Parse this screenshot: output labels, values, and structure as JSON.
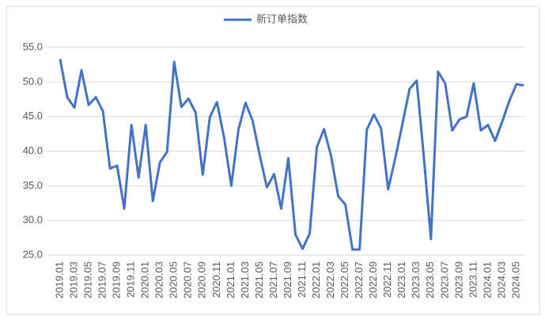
{
  "chart_data": {
    "type": "line",
    "categories": [
      "2019.01",
      null,
      "2019.03",
      null,
      "2019.05",
      null,
      "2019.07",
      null,
      "2019.09",
      null,
      "2019.11",
      null,
      "2020.01",
      null,
      "2020.03",
      null,
      "2020.05",
      null,
      "2020.07",
      null,
      "2020.09",
      null,
      "2020.11",
      null,
      "2021.01",
      null,
      "2021.03",
      null,
      "2021.05",
      null,
      "2021.07",
      null,
      "2021.09",
      null,
      "2021.11",
      null,
      "2022.01",
      null,
      "2022.03",
      null,
      "2022.05",
      null,
      "2022.07",
      null,
      "2022.09",
      null,
      "2022.11",
      null,
      "2023.01",
      null,
      "2023.03",
      null,
      "2023.05",
      null,
      "2023.07",
      null,
      "2023.09",
      null,
      "2023.11",
      null,
      "2024.01",
      null,
      "2024.03",
      null,
      "2024.05",
      null
    ],
    "series": [
      {
        "name": "新订单指数",
        "color": "#4472c4",
        "values": [
          53.3,
          47.8,
          46.3,
          51.7,
          46.7,
          47.8,
          45.8,
          37.5,
          37.9,
          31.7,
          43.8,
          36.2,
          43.8,
          32.8,
          38.4,
          39.9,
          52.9,
          46.4,
          47.6,
          45.6,
          36.6,
          44.9,
          47.1,
          41.9,
          35.0,
          43.1,
          47.0,
          44.4,
          39.4,
          34.8,
          36.7,
          31.7,
          39.0,
          28.0,
          25.9,
          28.1,
          40.6,
          43.2,
          39.3,
          33.5,
          32.3,
          25.8,
          25.8,
          43.1,
          45.3,
          43.3,
          34.5,
          39.0,
          43.9,
          49.0,
          50.2,
          39.2,
          27.3,
          51.5,
          49.8,
          43.0,
          44.6,
          45.0,
          49.8,
          43.0,
          43.8,
          41.5,
          44.3,
          47.3,
          49.7,
          49.5
        ]
      }
    ],
    "ylim": [
      25,
      55
    ],
    "yticks": [
      {
        "value": 25,
        "label": "25.0"
      },
      {
        "value": 30,
        "label": "30.0"
      },
      {
        "value": 35,
        "label": "35.0"
      },
      {
        "value": 40,
        "label": "40.0"
      },
      {
        "value": 45,
        "label": "45.0"
      },
      {
        "value": 50,
        "label": "50.0"
      },
      {
        "value": 55,
        "label": "55.0"
      }
    ],
    "grid": true,
    "legend": "top"
  }
}
